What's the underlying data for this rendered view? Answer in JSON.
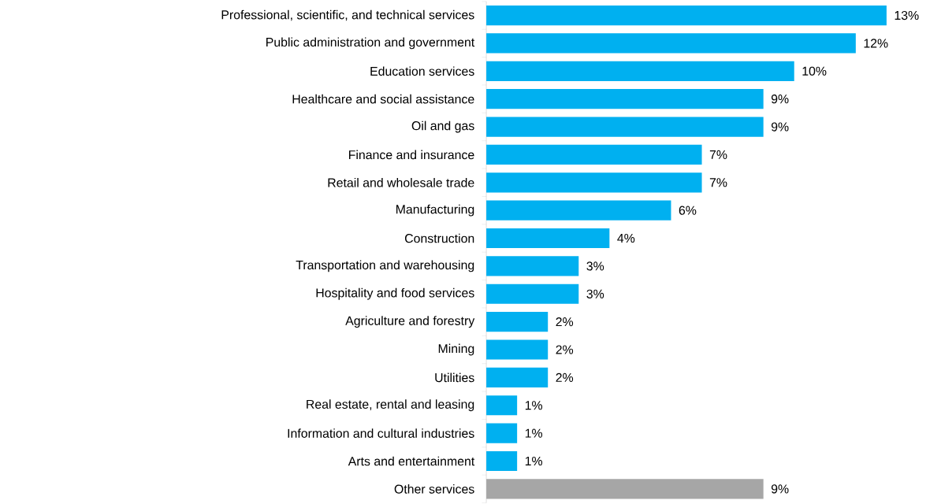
{
  "chart_data": {
    "type": "bar",
    "orientation": "horizontal",
    "categories": [
      "Professional, scientific, and technical services",
      "Public administration and government",
      "Education services",
      "Healthcare and social assistance",
      "Oil and gas",
      "Finance and insurance",
      "Retail and wholesale trade",
      "Manufacturing",
      "Construction",
      "Transportation and warehousing",
      "Hospitality and food services",
      "Agriculture and forestry",
      "Mining",
      "Utilities",
      "Real estate, rental and leasing",
      "Information and cultural industries",
      "Arts and entertainment",
      "Other services"
    ],
    "values": [
      13,
      12,
      10,
      9,
      9,
      7,
      7,
      6,
      4,
      3,
      3,
      2,
      2,
      2,
      1,
      1,
      1,
      9
    ],
    "value_labels": [
      "13%",
      "12%",
      "10%",
      "9%",
      "9%",
      "7%",
      "7%",
      "6%",
      "4%",
      "3%",
      "3%",
      "2%",
      "2%",
      "2%",
      "1%",
      "1%",
      "1%",
      "9%"
    ],
    "colors": [
      "#00b0f0",
      "#00b0f0",
      "#00b0f0",
      "#00b0f0",
      "#00b0f0",
      "#00b0f0",
      "#00b0f0",
      "#00b0f0",
      "#00b0f0",
      "#00b0f0",
      "#00b0f0",
      "#00b0f0",
      "#00b0f0",
      "#00b0f0",
      "#00b0f0",
      "#00b0f0",
      "#00b0f0",
      "#a6a6a6"
    ]
  }
}
